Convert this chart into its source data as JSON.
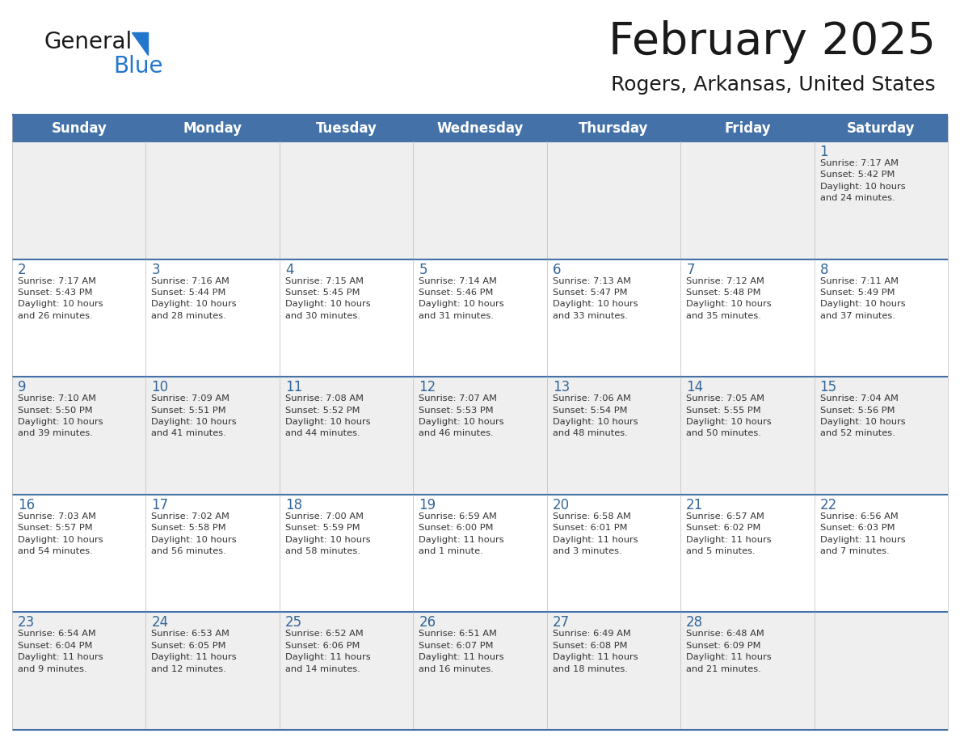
{
  "title": "February 2025",
  "subtitle": "Rogers, Arkansas, United States",
  "header_bg": "#4472A8",
  "header_text_color": "#FFFFFF",
  "day_names": [
    "Sunday",
    "Monday",
    "Tuesday",
    "Wednesday",
    "Thursday",
    "Friday",
    "Saturday"
  ],
  "row_bg_odd": "#EFEFEF",
  "row_bg_even": "#FFFFFF",
  "day_num_bg_odd": "#E8E8E8",
  "day_num_bg_even": "#F5F5F5",
  "border_color": "#4472A8",
  "separator_color": "#4472A8",
  "day_number_color": "#336699",
  "info_text_color": "#333333",
  "title_color": "#1a1a1a",
  "subtitle_color": "#1a1a1a",
  "logo_general_color": "#1a1a1a",
  "logo_blue_color": "#2277CC",
  "logo_triangle_color": "#2277CC",
  "calendar": [
    [
      {
        "day": null,
        "info": ""
      },
      {
        "day": null,
        "info": ""
      },
      {
        "day": null,
        "info": ""
      },
      {
        "day": null,
        "info": ""
      },
      {
        "day": null,
        "info": ""
      },
      {
        "day": null,
        "info": ""
      },
      {
        "day": 1,
        "info": "Sunrise: 7:17 AM\nSunset: 5:42 PM\nDaylight: 10 hours\nand 24 minutes."
      }
    ],
    [
      {
        "day": 2,
        "info": "Sunrise: 7:17 AM\nSunset: 5:43 PM\nDaylight: 10 hours\nand 26 minutes."
      },
      {
        "day": 3,
        "info": "Sunrise: 7:16 AM\nSunset: 5:44 PM\nDaylight: 10 hours\nand 28 minutes."
      },
      {
        "day": 4,
        "info": "Sunrise: 7:15 AM\nSunset: 5:45 PM\nDaylight: 10 hours\nand 30 minutes."
      },
      {
        "day": 5,
        "info": "Sunrise: 7:14 AM\nSunset: 5:46 PM\nDaylight: 10 hours\nand 31 minutes."
      },
      {
        "day": 6,
        "info": "Sunrise: 7:13 AM\nSunset: 5:47 PM\nDaylight: 10 hours\nand 33 minutes."
      },
      {
        "day": 7,
        "info": "Sunrise: 7:12 AM\nSunset: 5:48 PM\nDaylight: 10 hours\nand 35 minutes."
      },
      {
        "day": 8,
        "info": "Sunrise: 7:11 AM\nSunset: 5:49 PM\nDaylight: 10 hours\nand 37 minutes."
      }
    ],
    [
      {
        "day": 9,
        "info": "Sunrise: 7:10 AM\nSunset: 5:50 PM\nDaylight: 10 hours\nand 39 minutes."
      },
      {
        "day": 10,
        "info": "Sunrise: 7:09 AM\nSunset: 5:51 PM\nDaylight: 10 hours\nand 41 minutes."
      },
      {
        "day": 11,
        "info": "Sunrise: 7:08 AM\nSunset: 5:52 PM\nDaylight: 10 hours\nand 44 minutes."
      },
      {
        "day": 12,
        "info": "Sunrise: 7:07 AM\nSunset: 5:53 PM\nDaylight: 10 hours\nand 46 minutes."
      },
      {
        "day": 13,
        "info": "Sunrise: 7:06 AM\nSunset: 5:54 PM\nDaylight: 10 hours\nand 48 minutes."
      },
      {
        "day": 14,
        "info": "Sunrise: 7:05 AM\nSunset: 5:55 PM\nDaylight: 10 hours\nand 50 minutes."
      },
      {
        "day": 15,
        "info": "Sunrise: 7:04 AM\nSunset: 5:56 PM\nDaylight: 10 hours\nand 52 minutes."
      }
    ],
    [
      {
        "day": 16,
        "info": "Sunrise: 7:03 AM\nSunset: 5:57 PM\nDaylight: 10 hours\nand 54 minutes."
      },
      {
        "day": 17,
        "info": "Sunrise: 7:02 AM\nSunset: 5:58 PM\nDaylight: 10 hours\nand 56 minutes."
      },
      {
        "day": 18,
        "info": "Sunrise: 7:00 AM\nSunset: 5:59 PM\nDaylight: 10 hours\nand 58 minutes."
      },
      {
        "day": 19,
        "info": "Sunrise: 6:59 AM\nSunset: 6:00 PM\nDaylight: 11 hours\nand 1 minute."
      },
      {
        "day": 20,
        "info": "Sunrise: 6:58 AM\nSunset: 6:01 PM\nDaylight: 11 hours\nand 3 minutes."
      },
      {
        "day": 21,
        "info": "Sunrise: 6:57 AM\nSunset: 6:02 PM\nDaylight: 11 hours\nand 5 minutes."
      },
      {
        "day": 22,
        "info": "Sunrise: 6:56 AM\nSunset: 6:03 PM\nDaylight: 11 hours\nand 7 minutes."
      }
    ],
    [
      {
        "day": 23,
        "info": "Sunrise: 6:54 AM\nSunset: 6:04 PM\nDaylight: 11 hours\nand 9 minutes."
      },
      {
        "day": 24,
        "info": "Sunrise: 6:53 AM\nSunset: 6:05 PM\nDaylight: 11 hours\nand 12 minutes."
      },
      {
        "day": 25,
        "info": "Sunrise: 6:52 AM\nSunset: 6:06 PM\nDaylight: 11 hours\nand 14 minutes."
      },
      {
        "day": 26,
        "info": "Sunrise: 6:51 AM\nSunset: 6:07 PM\nDaylight: 11 hours\nand 16 minutes."
      },
      {
        "day": 27,
        "info": "Sunrise: 6:49 AM\nSunset: 6:08 PM\nDaylight: 11 hours\nand 18 minutes."
      },
      {
        "day": 28,
        "info": "Sunrise: 6:48 AM\nSunset: 6:09 PM\nDaylight: 11 hours\nand 21 minutes."
      },
      {
        "day": null,
        "info": ""
      }
    ]
  ]
}
